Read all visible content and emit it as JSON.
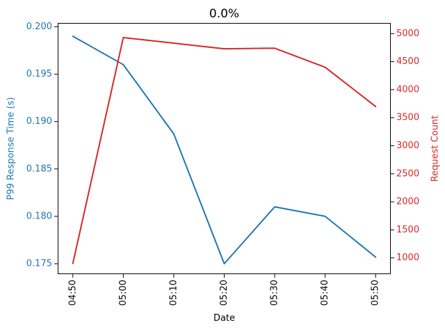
{
  "chart_data": {
    "type": "line",
    "title": "0.0%",
    "xlabel": "Date",
    "categories": [
      "04:50",
      "05:00",
      "05:10",
      "05:20",
      "05:30",
      "05:40",
      "05:50"
    ],
    "series": [
      {
        "name": "P99 Response Time (s)",
        "axis": "left",
        "color": "#1f77b4",
        "values": [
          0.199,
          0.196,
          0.1887,
          0.175,
          0.181,
          0.18,
          0.1757
        ]
      },
      {
        "name": "Request Count",
        "axis": "right",
        "color": "#d62728",
        "values": [
          900,
          4930,
          4830,
          4730,
          4740,
          4400,
          3700
        ]
      }
    ],
    "axes": {
      "left": {
        "label": "P99 Response Time (s)",
        "color": "#1f77b4",
        "ticks": [
          "0.175",
          "0.180",
          "0.185",
          "0.190",
          "0.195",
          "0.200"
        ],
        "ylim": [
          0.1739,
          0.2004
        ]
      },
      "right": {
        "label": "Request Count",
        "color": "#d62728",
        "ticks": [
          "1000",
          "1500",
          "2000",
          "2500",
          "3000",
          "3500",
          "4000",
          "4500",
          "5000"
        ],
        "ylim": [
          710,
          5190
        ]
      },
      "x": {
        "label": "Date",
        "color": "#000000",
        "tick_rotation": 90,
        "xlim": [
          -0.3,
          6.3
        ]
      }
    },
    "grid": false,
    "legend": "none",
    "background": "#ffffff",
    "spine_color": "#000000"
  }
}
